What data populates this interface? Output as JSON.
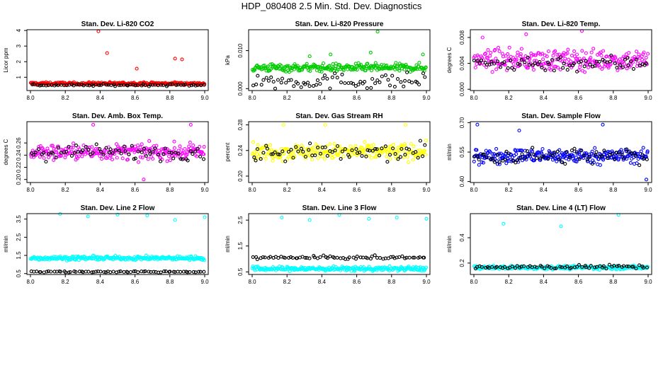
{
  "page": {
    "title": "HDP_080408  2.5 Min. Std. Dev. Diagnostics"
  },
  "colors": {
    "red": "#ff0000",
    "green": "#00cc00",
    "magenta": "#ff00ff",
    "yellow": "#ffff00",
    "blue": "#0000ff",
    "cyan": "#00ffff",
    "black": "#000000"
  },
  "chart_data": [
    {
      "type": "scatter",
      "title": "Stan. Dev. Li-820 CO2",
      "ylabel": "Licor ppm",
      "xlim": [
        8.0,
        9.0
      ],
      "ylim": [
        0.15,
        4.05
      ],
      "yticks": [
        "1",
        "2",
        "3",
        "4"
      ],
      "xticks": [
        "8.0",
        "8.2",
        "8.4",
        "8.6",
        "8.8",
        "9.0"
      ],
      "series": [
        {
          "name": "main",
          "color": "red",
          "base": 0.6,
          "spread": 0.08,
          "outliers": [
            [
              8.39,
              3.95
            ],
            [
              8.44,
              2.55
            ],
            [
              8.61,
              1.55
            ],
            [
              8.83,
              2.2
            ],
            [
              8.87,
              2.15
            ]
          ]
        },
        {
          "name": "black",
          "color": "black",
          "base": 0.5,
          "spread": 0.06
        }
      ]
    },
    {
      "type": "scatter",
      "title": "Stan. Dev. Li-820 Pressure",
      "ylabel": "kPa",
      "xlim": [
        8.0,
        9.0
      ],
      "ylim": [
        -0.0005,
        0.0155
      ],
      "yticks": [
        "0.000",
        "0.010"
      ],
      "xticks": [
        "8.0",
        "8.2",
        "8.4",
        "8.6",
        "8.8",
        "9.0"
      ],
      "series": [
        {
          "name": "main",
          "color": "green",
          "base": 0.0055,
          "spread": 0.001,
          "outliers": [
            [
              8.72,
              0.015
            ],
            [
              8.68,
              0.0095
            ],
            [
              8.33,
              0.0085
            ],
            [
              8.45,
              0.009
            ],
            [
              8.98,
              0.009
            ]
          ]
        },
        {
          "name": "black",
          "color": "black",
          "base": 0.002,
          "spread": 0.002
        }
      ]
    },
    {
      "type": "scatter",
      "title": "Stan. Dev. Li-820 Temp.",
      "ylabel": "degrees C",
      "xlim": [
        8.0,
        9.0
      ],
      "ylim": [
        -0.0002,
        0.0092
      ],
      "yticks": [
        "0.000",
        "0.004",
        "0.008"
      ],
      "xticks": [
        "8.0",
        "8.2",
        "8.4",
        "8.6",
        "8.8",
        "9.0"
      ],
      "series": [
        {
          "name": "main",
          "color": "magenta",
          "base": 0.0045,
          "spread": 0.0015,
          "outliers": [
            [
              8.62,
              0.009
            ],
            [
              8.05,
              0.008
            ],
            [
              8.3,
              0.0085
            ]
          ]
        },
        {
          "name": "black",
          "color": "black",
          "base": 0.004,
          "spread": 0.0012
        }
      ]
    },
    {
      "type": "scatter",
      "title": "Stan. Dev. Amb. Box Temp.",
      "ylabel": "degrees C",
      "xlim": [
        8.0,
        9.0
      ],
      "ylim": [
        0.195,
        0.295
      ],
      "yticks": [
        "0.20",
        "0.22",
        "0.24",
        "0.26"
      ],
      "xticks": [
        "8.0",
        "8.2",
        "8.4",
        "8.6",
        "8.8",
        "9.0"
      ],
      "series": [
        {
          "name": "main",
          "color": "magenta",
          "base": 0.245,
          "spread": 0.012,
          "outliers": [
            [
              8.92,
              0.29
            ],
            [
              8.36,
              0.29
            ],
            [
              8.65,
              0.2
            ]
          ]
        },
        {
          "name": "black",
          "color": "black",
          "base": 0.245,
          "spread": 0.012
        }
      ]
    },
    {
      "type": "scatter",
      "title": "Stan. Dev. Gas Stream RH",
      "ylabel": "percent",
      "xlim": [
        8.0,
        9.0
      ],
      "ylim": [
        0.19,
        0.285
      ],
      "yticks": [
        "0.20",
        "0.24",
        "0.28"
      ],
      "xticks": [
        "8.0",
        "8.2",
        "8.4",
        "8.6",
        "8.8",
        "9.0"
      ],
      "series": [
        {
          "name": "main",
          "color": "yellow",
          "base": 0.238,
          "spread": 0.012,
          "outliers": [
            [
              8.18,
              0.28
            ],
            [
              8.42,
              0.28
            ],
            [
              8.88,
              0.28
            ]
          ]
        },
        {
          "name": "black",
          "color": "black",
          "base": 0.236,
          "spread": 0.013
        }
      ]
    },
    {
      "type": "scatter",
      "title": "Stan. Dev. Sample Flow",
      "ylabel": "ml/min",
      "xlim": [
        8.0,
        9.0
      ],
      "ylim": [
        0.395,
        0.705
      ],
      "yticks": [
        "0.40",
        "0.55",
        "0.70"
      ],
      "xticks": [
        "8.0",
        "8.2",
        "8.4",
        "8.6",
        "8.8",
        "9.0"
      ],
      "series": [
        {
          "name": "main",
          "color": "blue",
          "base": 0.53,
          "spread": 0.035,
          "outliers": [
            [
              8.02,
              0.69
            ],
            [
              8.26,
              0.66
            ],
            [
              8.74,
              0.69
            ],
            [
              8.99,
              0.41
            ]
          ]
        },
        {
          "name": "black",
          "color": "black",
          "base": 0.53,
          "spread": 0.04
        }
      ]
    },
    {
      "type": "scatter",
      "title": "Stan. Dev. Line 2 Flow",
      "ylabel": "ml/min",
      "xlim": [
        8.0,
        9.0
      ],
      "ylim": [
        0.45,
        3.8
      ],
      "yticks": [
        "0.5",
        "1.5",
        "2.5",
        "3.5"
      ],
      "xticks": [
        "8.0",
        "8.2",
        "8.4",
        "8.6",
        "8.8",
        "9.0"
      ],
      "series": [
        {
          "name": "main",
          "color": "cyan",
          "base": 1.35,
          "spread": 0.1,
          "outliers": [
            [
              8.17,
              3.78
            ],
            [
              8.33,
              3.65
            ],
            [
              8.5,
              3.75
            ],
            [
              8.67,
              3.7
            ],
            [
              8.83,
              3.45
            ],
            [
              9.0,
              3.6
            ]
          ]
        },
        {
          "name": "black",
          "color": "black",
          "base": 0.6,
          "spread": 0.04
        }
      ]
    },
    {
      "type": "scatter",
      "title": "Stan. Dev. Line 3 Flow",
      "ylabel": "ml/min",
      "xlim": [
        8.0,
        9.0
      ],
      "ylim": [
        0.4,
        2.75
      ],
      "yticks": [
        "0.5",
        "1.5",
        "2.5"
      ],
      "xticks": [
        "8.0",
        "8.2",
        "8.4",
        "8.6",
        "8.8",
        "9.0"
      ],
      "series": [
        {
          "name": "main",
          "color": "cyan",
          "base": 0.62,
          "spread": 0.08,
          "outliers": [
            [
              8.17,
              2.6
            ],
            [
              8.33,
              2.5
            ],
            [
              8.5,
              2.7
            ],
            [
              8.67,
              2.55
            ],
            [
              8.83,
              2.6
            ],
            [
              9.0,
              2.55
            ]
          ]
        },
        {
          "name": "black",
          "color": "black",
          "base": 1.05,
          "spread": 0.06
        }
      ]
    },
    {
      "type": "scatter",
      "title": "Stan. Dev. Line 4 (LT) Flow",
      "ylabel": "ml/min",
      "xlim": [
        8.0,
        9.0
      ],
      "ylim": [
        0.11,
        0.59
      ],
      "yticks": [
        "0.2",
        "0.4"
      ],
      "xticks": [
        "8.0",
        "8.2",
        "8.4",
        "8.6",
        "8.8",
        "9.0"
      ],
      "series": [
        {
          "name": "main",
          "color": "cyan",
          "base": 0.165,
          "spread": 0.013,
          "outliers": [
            [
              8.17,
              0.51
            ],
            [
              8.5,
              0.49
            ],
            [
              8.83,
              0.58
            ]
          ]
        },
        {
          "name": "black",
          "color": "black",
          "base": 0.17,
          "spread": 0.015
        }
      ]
    }
  ]
}
